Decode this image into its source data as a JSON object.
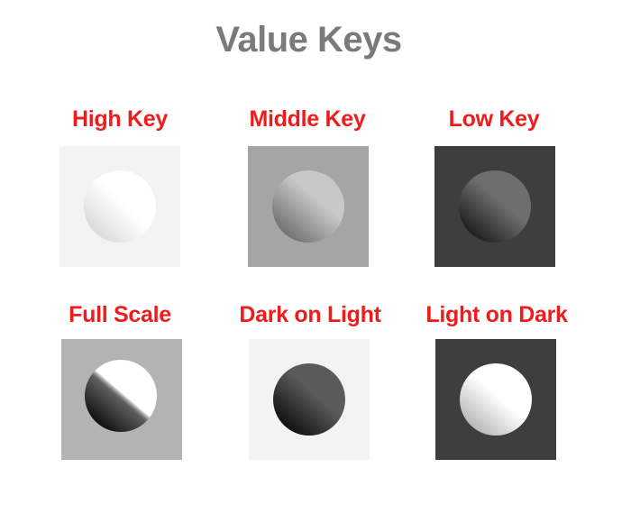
{
  "title": "Value Keys",
  "label_color": "#ee1c1c",
  "title_color": "#7a7a7a",
  "keys": [
    {
      "label": "High Key",
      "background": "#f3f3f3",
      "sphere_light": "#ffffff",
      "sphere_dark": "#d2d2d2"
    },
    {
      "label": "Middle Key",
      "background": "#a5a5a5",
      "sphere_light": "#c8c8c8",
      "sphere_dark": "#6e6e6e"
    },
    {
      "label": "Low Key",
      "background": "#3e3e3e",
      "sphere_light": "#6e6e6e",
      "sphere_dark": "#1c1c1c"
    },
    {
      "label": "Full Scale",
      "background": "#b3b3b3",
      "sphere_light": "#ffffff",
      "sphere_dark": "#161616"
    },
    {
      "label": "Dark on Light",
      "background": "#f3f3f3",
      "sphere_light": "#5a5a5a",
      "sphere_dark": "#0d0d0d"
    },
    {
      "label": "Light on Dark",
      "background": "#3e3e3e",
      "sphere_light": "#ffffff",
      "sphere_dark": "#b4b4b4"
    }
  ]
}
